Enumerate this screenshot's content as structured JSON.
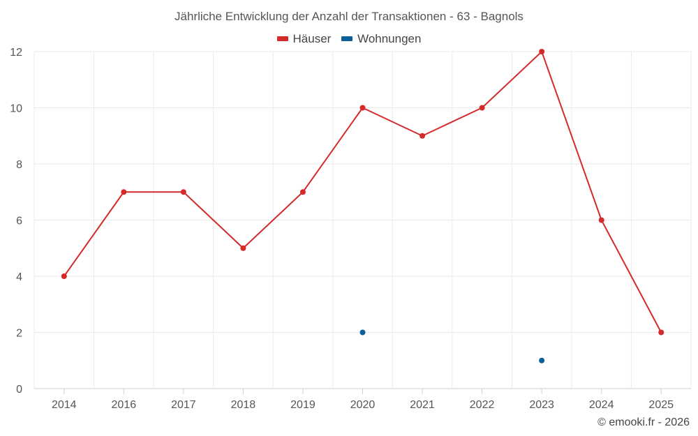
{
  "chart_data": {
    "type": "line",
    "title": "Jährliche Entwicklung der Anzahl der Transaktionen - 63 - Bagnols",
    "categories": [
      "2014",
      "2016",
      "2017",
      "2018",
      "2019",
      "2020",
      "2021",
      "2022",
      "2023",
      "2024",
      "2025"
    ],
    "series": [
      {
        "name": "Häuser",
        "color": "#d42a2a",
        "values": [
          4,
          7,
          7,
          5,
          7,
          10,
          9,
          10,
          12,
          6,
          2
        ]
      },
      {
        "name": "Wohnungen",
        "color": "#0a5f9a",
        "values": [
          null,
          null,
          null,
          null,
          null,
          2,
          null,
          null,
          1,
          null,
          null
        ]
      }
    ],
    "ylim": [
      0,
      12
    ],
    "yticks": [
      0,
      2,
      4,
      6,
      8,
      10,
      12
    ],
    "grid": true,
    "legend_position": "top-center"
  },
  "credit": "© emooki.fr - 2026"
}
